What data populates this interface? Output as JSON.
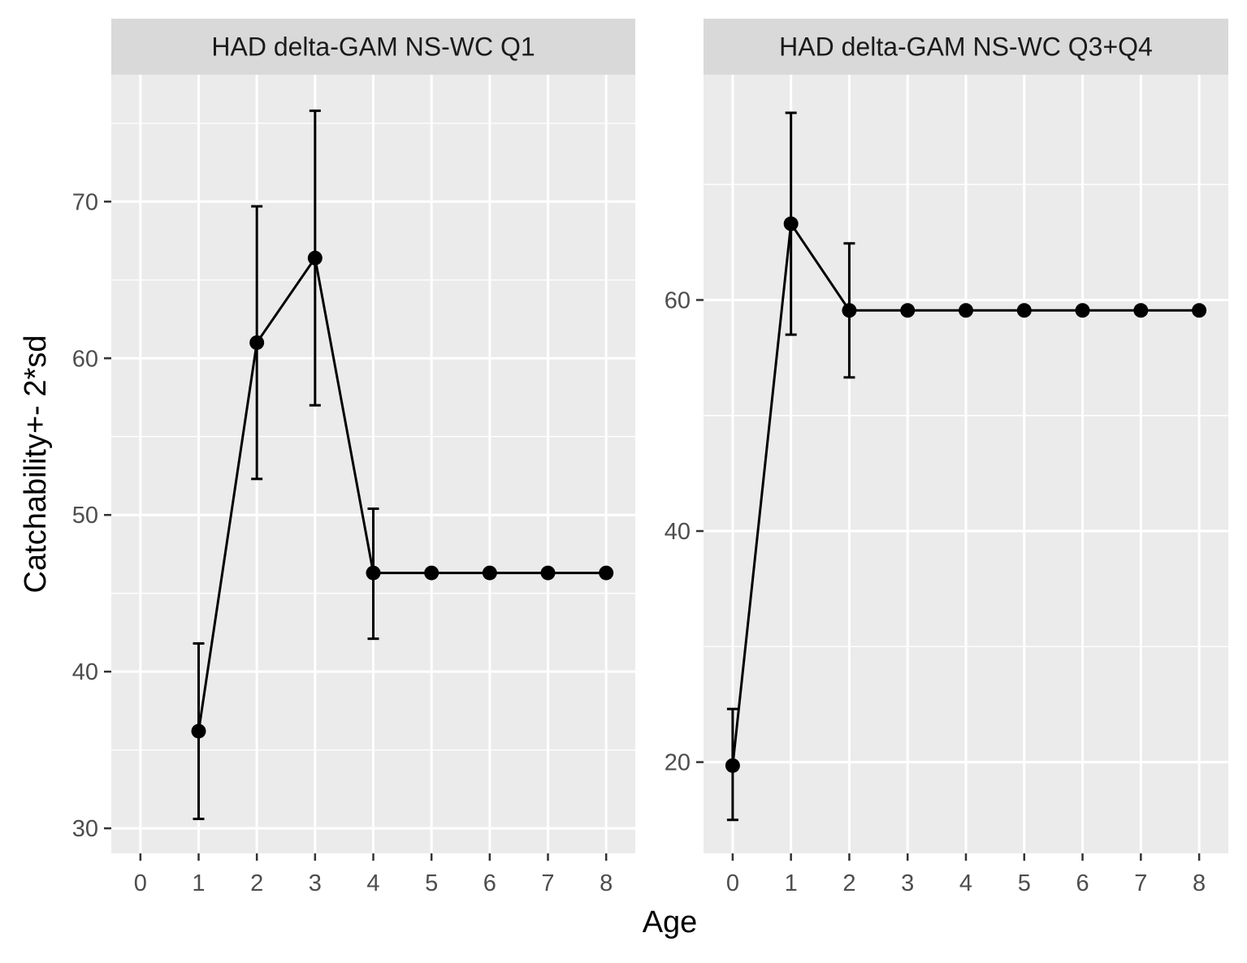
{
  "chart_data": {
    "type": "line",
    "xlabel": "Age",
    "ylabel": "Catchability+- 2*sd",
    "panels": [
      {
        "title": "HAD delta-GAM NS-WC Q1",
        "x_ticks": [
          0,
          1,
          2,
          3,
          4,
          5,
          6,
          7,
          8
        ],
        "xlim": [
          -0.5,
          8.5
        ],
        "y_ticks": [
          30,
          40,
          50,
          60,
          70
        ],
        "ylim": [
          28.4,
          78.1
        ],
        "points": [
          {
            "x": 1,
            "y": 36.2,
            "ymin": 30.6,
            "ymax": 41.8
          },
          {
            "x": 2,
            "y": 61.0,
            "ymin": 52.3,
            "ymax": 69.7
          },
          {
            "x": 3,
            "y": 66.4,
            "ymin": 57.0,
            "ymax": 75.8
          },
          {
            "x": 4,
            "y": 46.3,
            "ymin": 42.1,
            "ymax": 50.4
          },
          {
            "x": 5,
            "y": 46.3
          },
          {
            "x": 6,
            "y": 46.3
          },
          {
            "x": 7,
            "y": 46.3
          },
          {
            "x": 8,
            "y": 46.3
          }
        ]
      },
      {
        "title": "HAD delta-GAM NS-WC Q3+Q4",
        "x_ticks": [
          0,
          1,
          2,
          3,
          4,
          5,
          6,
          7,
          8
        ],
        "xlim": [
          -0.5,
          8.5
        ],
        "y_ticks": [
          20,
          40,
          60
        ],
        "ylim": [
          12.1,
          79.5
        ],
        "points": [
          {
            "x": 0,
            "y": 19.7,
            "ymin": 15.0,
            "ymax": 24.6
          },
          {
            "x": 1,
            "y": 66.6,
            "ymin": 57.0,
            "ymax": 76.2
          },
          {
            "x": 2,
            "y": 59.1,
            "ymin": 53.3,
            "ymax": 64.9
          },
          {
            "x": 3,
            "y": 59.1
          },
          {
            "x": 4,
            "y": 59.1
          },
          {
            "x": 5,
            "y": 59.1
          },
          {
            "x": 6,
            "y": 59.1
          },
          {
            "x": 7,
            "y": 59.1
          },
          {
            "x": 8,
            "y": 59.1
          }
        ]
      }
    ],
    "grid": true,
    "colors": {
      "panel_background": "#ebebeb",
      "strip_background": "#d9d9d9",
      "grid": "#ffffff",
      "series": "#000000",
      "tick_label": "#4d4d4d"
    }
  }
}
